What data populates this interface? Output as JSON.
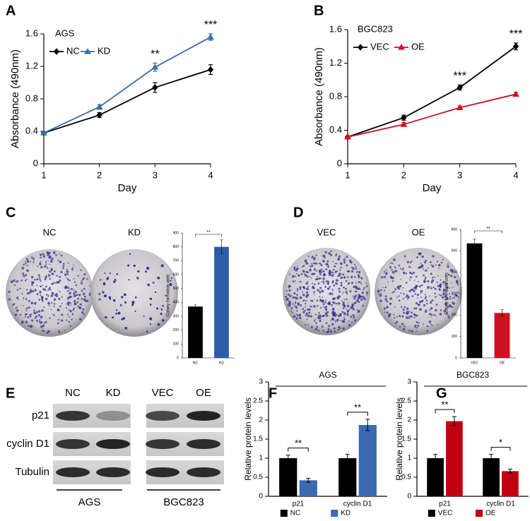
{
  "chart_data": [
    {
      "type": "line",
      "panel": "A",
      "title": "AGS",
      "x": [
        1,
        2,
        3,
        4
      ],
      "xlim": [
        1,
        4
      ],
      "xticks": [
        1,
        2,
        3,
        4
      ],
      "ylim": [
        0,
        1.6
      ],
      "yticks": [
        0,
        0.4,
        0.8,
        1.2,
        1.6
      ],
      "xlabel": "Day",
      "ylabel": "Absorbance (490nm)",
      "series": [
        {
          "name": "NC",
          "color": "#000000",
          "marker": "diamond",
          "values": [
            0.38,
            0.6,
            0.94,
            1.16
          ],
          "errors": [
            0.01,
            0.03,
            0.06,
            0.06
          ]
        },
        {
          "name": "KD",
          "color": "#3a6ea5",
          "marker": "triangle",
          "values": [
            0.38,
            0.7,
            1.19,
            1.56
          ],
          "errors": [
            0.01,
            0.03,
            0.05,
            0.04
          ]
        }
      ],
      "annotations": [
        null,
        null,
        "**",
        "***"
      ]
    },
    {
      "type": "line",
      "panel": "B",
      "title": "BGC823",
      "x": [
        1,
        2,
        3,
        4
      ],
      "xlim": [
        1,
        4
      ],
      "xticks": [
        1,
        2,
        3,
        4
      ],
      "ylim": [
        0,
        1.6
      ],
      "yticks": [
        0,
        0.4,
        0.8,
        1.2,
        1.6
      ],
      "xlabel": "Day",
      "ylabel": "Absorbance (490nm)",
      "series": [
        {
          "name": "VEC",
          "color": "#000000",
          "marker": "diamond",
          "values": [
            0.32,
            0.55,
            0.91,
            1.4
          ],
          "errors": [
            0.01,
            0.03,
            0.03,
            0.04
          ]
        },
        {
          "name": "OE",
          "color": "#d01020",
          "marker": "triangle",
          "values": [
            0.32,
            0.47,
            0.67,
            0.83
          ],
          "errors": [
            0.01,
            0.02,
            0.02,
            0.02
          ]
        }
      ],
      "annotations": [
        null,
        null,
        "***",
        "***"
      ]
    },
    {
      "type": "bar",
      "panel": "C",
      "image_labels": [
        "NC",
        "KD"
      ],
      "categories": [
        "NC",
        "KD"
      ],
      "values": [
        370,
        800
      ],
      "errors": [
        12,
        50
      ],
      "colors": [
        "#000000",
        "#2e5caa"
      ],
      "ylim": [
        0,
        900
      ],
      "yticks": [
        0,
        100,
        200,
        300,
        400,
        500,
        600,
        700,
        800,
        900
      ],
      "ylabel": "Colony formation units",
      "annotation": "**"
    },
    {
      "type": "bar",
      "panel": "D",
      "image_labels": [
        "VEC",
        "OE"
      ],
      "categories": [
        "VEC",
        "OE"
      ],
      "values": [
        535,
        210
      ],
      "errors": [
        20,
        15
      ],
      "colors": [
        "#000000",
        "#d01020"
      ],
      "ylim": [
        0,
        600
      ],
      "yticks": [
        0,
        100,
        200,
        300,
        400,
        500,
        600
      ],
      "ylabel": "Colony formation units",
      "annotation": "**"
    },
    {
      "type": "grouped_bar",
      "panel": "F",
      "title": "AGS",
      "categories": [
        "p21",
        "cyclin D1"
      ],
      "ylim": [
        0,
        3
      ],
      "yticks": [
        0,
        0.5,
        1,
        1.5,
        2,
        2.5,
        3
      ],
      "ylabel": "Relative protein levels",
      "series": [
        {
          "name": "NC",
          "color": "#000000",
          "values": [
            1,
            1
          ],
          "errors": [
            0.08,
            0.1
          ]
        },
        {
          "name": "KD",
          "color": "#3a6ab0",
          "values": [
            0.42,
            1.87
          ],
          "errors": [
            0.05,
            0.15
          ]
        }
      ],
      "annotations": [
        "**",
        "**"
      ]
    },
    {
      "type": "grouped_bar",
      "panel": "G",
      "title": "BGC823",
      "categories": [
        "p21",
        "cyclin D1"
      ],
      "ylim": [
        0,
        3
      ],
      "yticks": [
        0,
        0.5,
        1,
        1.5,
        2,
        2.5,
        3
      ],
      "ylabel": "Relative protein levels",
      "series": [
        {
          "name": "VEC",
          "color": "#000000",
          "values": [
            1,
            1
          ],
          "errors": [
            0.1,
            0.1
          ]
        },
        {
          "name": "OE",
          "color": "#c00010",
          "values": [
            1.97,
            0.66
          ],
          "errors": [
            0.12,
            0.05
          ]
        }
      ],
      "annotations": [
        "**",
        "*"
      ]
    }
  ],
  "blot": {
    "panel": "E",
    "lanes": [
      "NC",
      "KD",
      "VEC",
      "OE"
    ],
    "proteins": [
      "p21",
      "cyclin D1",
      "Tubulin"
    ],
    "groups": [
      "AGS",
      "BGC823"
    ]
  }
}
